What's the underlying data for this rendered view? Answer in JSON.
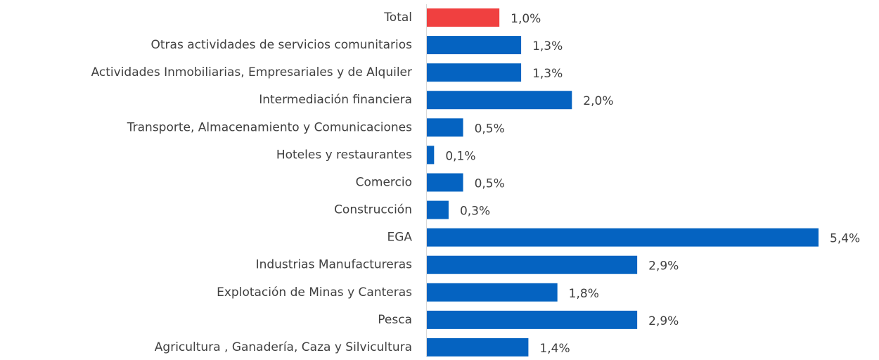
{
  "chart_data": {
    "type": "barh",
    "categories": [
      "Total",
      "Otras actividades de servicios comunitarios",
      "Actividades Inmobiliarias, Empresariales y de Alquiler",
      "Intermediación financiera",
      "Transporte, Almacenamiento y Comunicaciones",
      "Hoteles y restaurantes",
      "Comercio",
      "Construcción",
      "EGA",
      "Industrias Manufactureras",
      "Explotación de Minas y Canteras",
      "Pesca",
      "Agricultura , Ganadería, Caza y Silvicultura"
    ],
    "values": [
      1.0,
      1.3,
      1.3,
      2.0,
      0.5,
      0.1,
      0.5,
      0.3,
      5.4,
      2.9,
      1.8,
      2.9,
      1.4
    ],
    "value_labels": [
      "1,0%",
      "1,3%",
      "1,3%",
      "2,0%",
      "0,5%",
      "0,1%",
      "0,5%",
      "0,3%",
      "5,4%",
      "2,9%",
      "1,8%",
      "2,9%",
      "1,4%"
    ],
    "colors": [
      "#f04040",
      "#0563c1",
      "#0563c1",
      "#0563c1",
      "#0563c1",
      "#0563c1",
      "#0563c1",
      "#0563c1",
      "#0563c1",
      "#0563c1",
      "#0563c1",
      "#0563c1",
      "#0563c1"
    ]
  }
}
